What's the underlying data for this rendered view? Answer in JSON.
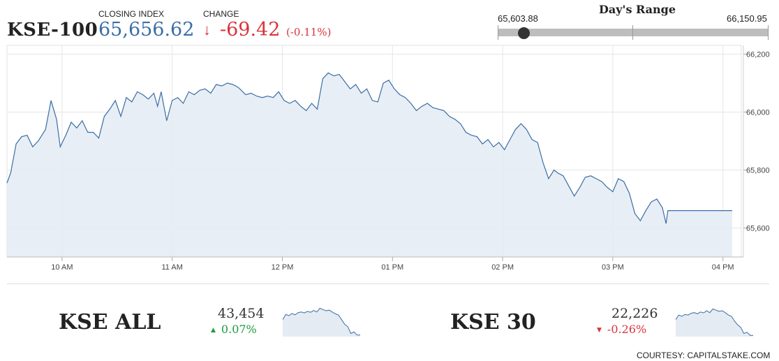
{
  "header": {
    "index_name": "KSE-100",
    "closing_label": "CLOSING INDEX",
    "closing_value": "65,656.62",
    "change_label": "CHANGE",
    "change_arrow": "↓",
    "change_value": "-69.42",
    "change_pct": "(-0.11%)"
  },
  "range": {
    "title": "Day's Range",
    "low": "65,603.88",
    "high": "66,150.95",
    "current_fraction": 0.096
  },
  "colors": {
    "line": "#3a6ea5",
    "fill": "#e4ebf3",
    "up": "#1e9b3c",
    "down": "#d9333a"
  },
  "chart_data": [
    {
      "type": "area",
      "title": "",
      "xlabel": "",
      "ylabel": "",
      "x_ticks": [
        "10 AM",
        "11 AM",
        "12 PM",
        "01 PM",
        "02 PM",
        "03 PM",
        "04 PM"
      ],
      "y_ticks": [
        "66,200",
        "66,000",
        "65,800",
        "65,600"
      ],
      "ylim": [
        65500,
        66230
      ],
      "grid": true,
      "series": [
        {
          "x": [
            "09:30",
            "09:32",
            "09:35",
            "09:38",
            "09:41",
            "09:44",
            "09:47",
            "09:51",
            "09:54",
            "09:57",
            "09:59",
            "10:02",
            "10:05",
            "10:08",
            "10:11",
            "10:14",
            "10:17",
            "10:20",
            "10:23",
            "10:26",
            "10:29",
            "10:32",
            "10:35",
            "10:38",
            "10:41",
            "10:44",
            "10:47",
            "10:50",
            "10:52",
            "10:54",
            "10:57",
            "11:00",
            "11:03",
            "11:06",
            "11:09",
            "11:12",
            "11:15",
            "11:18",
            "11:21",
            "11:24",
            "11:27",
            "11:30",
            "11:33",
            "11:36",
            "11:40",
            "11:43",
            "11:46",
            "11:49",
            "11:52",
            "11:55",
            "11:58",
            "12:01",
            "12:04",
            "12:07",
            "12:10",
            "12:13",
            "12:16",
            "12:19",
            "12:22",
            "12:25",
            "12:28",
            "12:31",
            "12:34",
            "12:37",
            "12:40",
            "12:43",
            "12:46",
            "12:49",
            "12:52",
            "12:55",
            "12:58",
            "13:01",
            "13:04",
            "13:07",
            "13:10",
            "13:13",
            "13:16",
            "13:19",
            "13:22",
            "13:25",
            "13:28",
            "13:31",
            "13:34",
            "13:37",
            "13:40",
            "13:43",
            "13:46",
            "13:49",
            "13:52",
            "13:55",
            "13:58",
            "14:01",
            "14:04",
            "14:07",
            "14:10",
            "14:13",
            "14:16",
            "14:19",
            "14:22",
            "14:25",
            "14:28",
            "14:30",
            "14:33",
            "14:36",
            "14:39",
            "14:42",
            "14:45",
            "14:48",
            "14:51",
            "14:54",
            "14:57",
            "15:00",
            "15:03",
            "15:06",
            "15:09",
            "15:12",
            "15:15",
            "15:18",
            "15:21",
            "15:24",
            "15:27",
            "15:29",
            "15:30",
            "15:35",
            "15:40",
            "15:45",
            "15:50",
            "15:55",
            "16:00",
            "16:05"
          ],
          "values": [
            65755,
            65790,
            65890,
            65915,
            65920,
            65880,
            65900,
            65940,
            66040,
            65975,
            65880,
            65920,
            65965,
            65945,
            65970,
            65930,
            65930,
            65910,
            65985,
            66010,
            66040,
            65985,
            66050,
            66035,
            66070,
            66060,
            66045,
            66065,
            66020,
            66070,
            65970,
            66040,
            66050,
            66030,
            66070,
            66060,
            66075,
            66080,
            66065,
            66095,
            66090,
            66100,
            66095,
            66085,
            66060,
            66065,
            66055,
            66050,
            66055,
            66050,
            66070,
            66040,
            66030,
            66040,
            66020,
            66005,
            66030,
            66010,
            66115,
            66135,
            66125,
            66130,
            66105,
            66080,
            66095,
            66065,
            66080,
            66040,
            66035,
            66100,
            66110,
            66080,
            66060,
            66050,
            66030,
            66005,
            66020,
            66030,
            66015,
            66010,
            66005,
            65985,
            65975,
            65960,
            65930,
            65920,
            65915,
            65890,
            65905,
            65880,
            65895,
            65870,
            65905,
            65940,
            65960,
            65940,
            65905,
            65895,
            65825,
            65770,
            65800,
            65790,
            65780,
            65745,
            65710,
            65740,
            65775,
            65780,
            65770,
            65760,
            65740,
            65725,
            65770,
            65760,
            65720,
            65650,
            65625,
            65660,
            65690,
            65700,
            65670,
            65615,
            65660,
            65660,
            65660,
            65660,
            65660,
            65660,
            65660,
            65660
          ]
        }
      ]
    },
    {
      "type": "area",
      "title": "KSE ALL",
      "series": [
        {
          "x": [
            0,
            1,
            2,
            3,
            4,
            5,
            6,
            7,
            8,
            9,
            10,
            11,
            12,
            13,
            14,
            15,
            16,
            17,
            18,
            19,
            20,
            21,
            22,
            23,
            24,
            25
          ],
          "values": [
            0.55,
            0.72,
            0.68,
            0.75,
            0.71,
            0.78,
            0.8,
            0.77,
            0.82,
            0.79,
            0.85,
            0.8,
            0.92,
            0.88,
            0.84,
            0.86,
            0.8,
            0.74,
            0.7,
            0.55,
            0.4,
            0.32,
            0.1,
            0.15,
            0.05,
            0.05
          ]
        }
      ]
    },
    {
      "type": "area",
      "title": "KSE 30",
      "series": [
        {
          "x": [
            0,
            1,
            2,
            3,
            4,
            5,
            6,
            7,
            8,
            9,
            10,
            11,
            12,
            13,
            14,
            15,
            16,
            17,
            18,
            19,
            20,
            21,
            22,
            23,
            24,
            25
          ],
          "values": [
            0.55,
            0.7,
            0.66,
            0.72,
            0.7,
            0.76,
            0.78,
            0.74,
            0.8,
            0.77,
            0.84,
            0.78,
            0.9,
            0.86,
            0.82,
            0.84,
            0.78,
            0.7,
            0.66,
            0.5,
            0.38,
            0.3,
            0.1,
            0.14,
            0.04,
            0.04
          ]
        }
      ]
    }
  ],
  "subindices": [
    {
      "name": "KSE ALL",
      "value": "43,454",
      "change": "0.07%",
      "direction": "up",
      "arrow": "▲"
    },
    {
      "name": "KSE 30",
      "value": "22,226",
      "change": "-0.26%",
      "direction": "down",
      "arrow": "▼"
    }
  ],
  "courtesy": "COURTESY: CAPITALSTAKE.COM"
}
